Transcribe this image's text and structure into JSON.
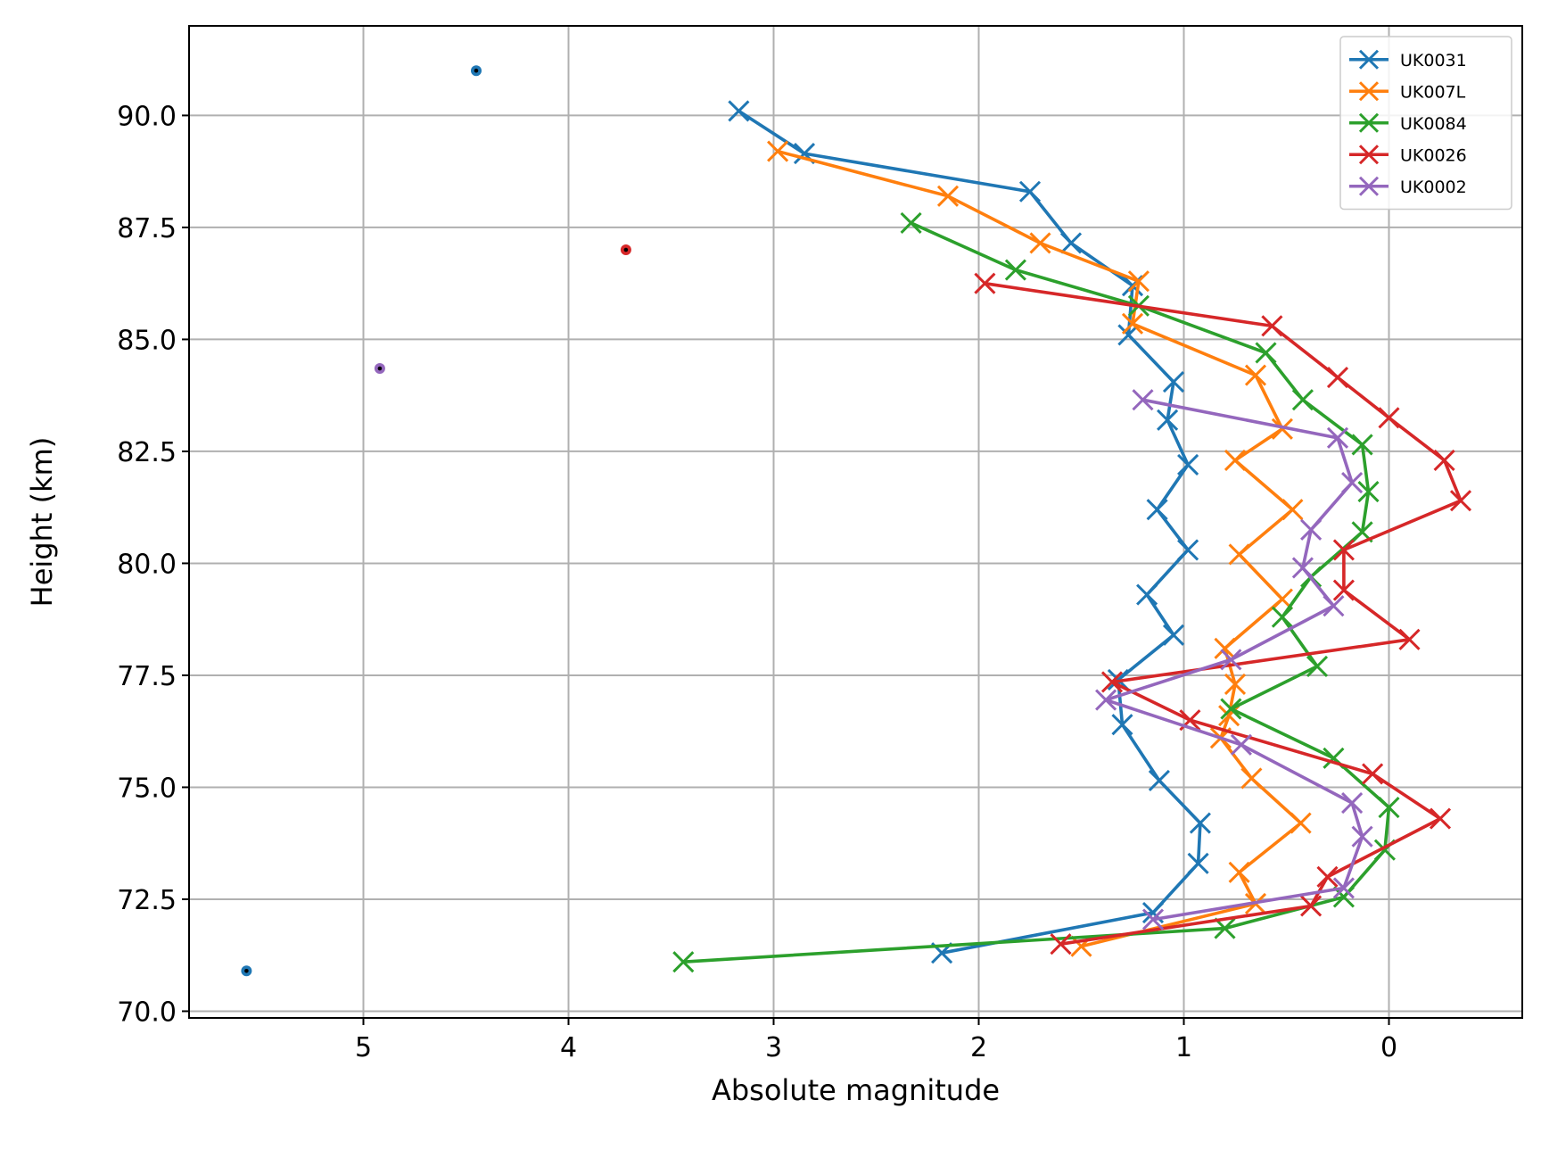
{
  "chart_data": {
    "type": "line",
    "xlabel": "Absolute magnitude",
    "ylabel": "Height (km)",
    "xlim": [
      5.85,
      -0.65
    ],
    "ylim": [
      69.85,
      92.0
    ],
    "x_inverted": true,
    "grid": true,
    "legend_position": "top-right",
    "xticks": [
      5,
      4,
      3,
      2,
      1,
      0
    ],
    "xtick_labels": [
      "5",
      "4",
      "3",
      "2",
      "1",
      "0"
    ],
    "yticks": [
      70.0,
      72.5,
      75.0,
      77.5,
      80.0,
      82.5,
      85.0,
      87.5,
      90.0
    ],
    "ytick_labels": [
      "70.0",
      "72.5",
      "75.0",
      "77.5",
      "80.0",
      "82.5",
      "85.0",
      "87.5",
      "90.0"
    ],
    "series": [
      {
        "name": "UK0031",
        "color": "#1f77b4",
        "points": [
          [
            3.17,
            90.1
          ],
          [
            2.85,
            89.15
          ],
          [
            1.75,
            88.3
          ],
          [
            1.55,
            87.15
          ],
          [
            1.25,
            86.2
          ],
          [
            1.27,
            85.1
          ],
          [
            1.05,
            84.05
          ],
          [
            1.08,
            83.2
          ],
          [
            0.98,
            82.2
          ],
          [
            1.13,
            81.2
          ],
          [
            0.98,
            80.3
          ],
          [
            1.18,
            79.3
          ],
          [
            1.05,
            78.4
          ],
          [
            1.32,
            77.4
          ],
          [
            1.3,
            76.4
          ],
          [
            1.12,
            75.15
          ],
          [
            0.92,
            74.2
          ],
          [
            0.93,
            73.3
          ],
          [
            1.15,
            72.2
          ],
          [
            2.18,
            71.3
          ]
        ]
      },
      {
        "name": "UK007L",
        "color": "#ff7f0e",
        "points": [
          [
            2.98,
            89.2
          ],
          [
            2.15,
            88.2
          ],
          [
            1.7,
            87.15
          ],
          [
            1.22,
            86.3
          ],
          [
            1.25,
            85.35
          ],
          [
            0.65,
            84.2
          ],
          [
            0.52,
            83.0
          ],
          [
            0.75,
            82.3
          ],
          [
            0.47,
            81.2
          ],
          [
            0.73,
            80.2
          ],
          [
            0.52,
            79.2
          ],
          [
            0.8,
            78.1
          ],
          [
            0.75,
            77.3
          ],
          [
            0.78,
            76.6
          ],
          [
            0.82,
            76.1
          ],
          [
            0.67,
            75.2
          ],
          [
            0.43,
            74.2
          ],
          [
            0.73,
            73.1
          ],
          [
            0.65,
            72.4
          ],
          [
            1.5,
            71.45
          ]
        ]
      },
      {
        "name": "UK0084",
        "color": "#2ca02c",
        "points": [
          [
            2.33,
            87.6
          ],
          [
            1.82,
            86.55
          ],
          [
            1.22,
            85.75
          ],
          [
            0.6,
            84.7
          ],
          [
            0.42,
            83.65
          ],
          [
            0.13,
            82.65
          ],
          [
            0.1,
            81.6
          ],
          [
            0.13,
            80.7
          ],
          [
            0.38,
            79.7
          ],
          [
            0.52,
            78.8
          ],
          [
            0.35,
            77.7
          ],
          [
            0.77,
            76.75
          ],
          [
            0.27,
            75.65
          ],
          [
            0.0,
            74.55
          ],
          [
            0.02,
            73.6
          ],
          [
            0.22,
            72.55
          ],
          [
            0.8,
            71.85
          ],
          [
            3.44,
            71.1
          ]
        ]
      },
      {
        "name": "UK0026",
        "color": "#d62728",
        "points": [
          [
            1.97,
            86.25
          ],
          [
            0.57,
            85.3
          ],
          [
            0.25,
            84.15
          ],
          [
            0.0,
            83.25
          ],
          [
            -0.27,
            82.3
          ],
          [
            -0.35,
            81.4
          ],
          [
            0.22,
            80.3
          ],
          [
            0.22,
            79.4
          ],
          [
            -0.1,
            78.3
          ],
          [
            1.35,
            77.35
          ],
          [
            0.97,
            76.5
          ],
          [
            0.08,
            75.3
          ],
          [
            -0.25,
            74.3
          ],
          [
            0.3,
            73.0
          ],
          [
            0.38,
            72.35
          ],
          [
            1.6,
            71.5
          ]
        ]
      },
      {
        "name": "UK0002",
        "color": "#9467bd",
        "points": [
          [
            1.2,
            83.65
          ],
          [
            0.25,
            82.8
          ],
          [
            0.18,
            81.8
          ],
          [
            0.38,
            80.75
          ],
          [
            0.42,
            79.9
          ],
          [
            0.27,
            79.05
          ],
          [
            0.77,
            77.85
          ],
          [
            1.38,
            76.95
          ],
          [
            0.72,
            75.95
          ],
          [
            0.18,
            74.65
          ],
          [
            0.13,
            73.9
          ],
          [
            0.22,
            72.75
          ],
          [
            1.15,
            72.05
          ]
        ]
      }
    ],
    "extra_points": [
      {
        "x": 4.45,
        "y": 91.0,
        "color": "#1f77b4"
      },
      {
        "x": 3.72,
        "y": 87.0,
        "color": "#d62728"
      },
      {
        "x": 4.92,
        "y": 84.35,
        "color": "#9467bd"
      },
      {
        "x": 5.57,
        "y": 70.9,
        "color": "#1f77b4"
      }
    ]
  }
}
